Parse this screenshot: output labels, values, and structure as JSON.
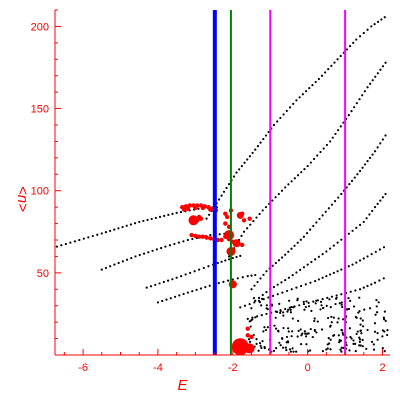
{
  "chart_data": {
    "type": "scatter",
    "xlabel": "E",
    "ylabel": "<n>",
    "xlim": [
      -6.75,
      2.2
    ],
    "ylim": [
      0,
      210
    ],
    "x_ticks": [
      -6,
      -4,
      -2,
      0,
      2
    ],
    "x_tick_labels": [
      "-6",
      "-4",
      "-2",
      "0",
      "2"
    ],
    "y_ticks": [
      50,
      100,
      150,
      200
    ],
    "y_tick_labels": [
      "50",
      "100",
      "150",
      "200"
    ],
    "grid": false,
    "colors": {
      "axes": "#ff0000",
      "black_points": "#000000",
      "red_points": "#ff0000"
    },
    "vertical_lines": [
      {
        "x": -2.48,
        "color": "#0000ff",
        "width": 4
      },
      {
        "x": -2.05,
        "color": "#008000",
        "width": 2
      },
      {
        "x": -1.0,
        "color": "#ff00ff",
        "width": 2
      },
      {
        "x": 1.0,
        "color": "#ff00ff",
        "width": 2
      }
    ],
    "dotted_curves": [
      {
        "points": [
          [
            -6.7,
            66
          ],
          [
            -5.5,
            74
          ],
          [
            -4.5,
            81
          ],
          [
            -3.5,
            86.5
          ],
          [
            -2.8,
            89.5
          ],
          [
            -2.3,
            90
          ]
        ]
      },
      {
        "points": [
          [
            -5.5,
            52
          ],
          [
            -4.6,
            60
          ],
          [
            -3.8,
            66
          ],
          [
            -3.2,
            70
          ],
          [
            -2.6,
            73
          ],
          [
            -2.1,
            74
          ]
        ]
      },
      {
        "points": [
          [
            -4.3,
            41
          ],
          [
            -3.5,
            47
          ],
          [
            -2.9,
            52
          ],
          [
            -2.4,
            56
          ],
          [
            -2.0,
            59
          ],
          [
            -1.7,
            61
          ]
        ]
      },
      {
        "points": [
          [
            -4.0,
            32
          ],
          [
            -3.2,
            38
          ],
          [
            -2.5,
            43
          ],
          [
            -2.0,
            46
          ],
          [
            -1.6,
            48
          ],
          [
            -1.3,
            49
          ]
        ]
      },
      {
        "points": [
          [
            -2.7,
            83
          ],
          [
            -2.3,
            97
          ],
          [
            -1.9,
            111
          ],
          [
            -1.4,
            125
          ],
          [
            -0.9,
            140
          ],
          [
            -0.3,
            155
          ],
          [
            0.3,
            168
          ],
          [
            0.8,
            180
          ],
          [
            1.3,
            192
          ],
          [
            1.7,
            200
          ],
          [
            2.15,
            207
          ]
        ]
      },
      {
        "points": [
          [
            -2.1,
            60
          ],
          [
            -1.7,
            75
          ],
          [
            -1.2,
            88
          ],
          [
            -0.6,
            102
          ],
          [
            0.0,
            115
          ],
          [
            0.6,
            130
          ],
          [
            1.1,
            146
          ],
          [
            1.6,
            163
          ],
          [
            2.15,
            180
          ]
        ]
      },
      {
        "points": [
          [
            -1.5,
            40
          ],
          [
            -1.1,
            51
          ],
          [
            -0.6,
            61
          ],
          [
            -0.1,
            72
          ],
          [
            0.4,
            85
          ],
          [
            0.9,
            98
          ],
          [
            1.4,
            112
          ],
          [
            1.8,
            124
          ],
          [
            2.15,
            136
          ]
        ]
      },
      {
        "points": [
          [
            -1.4,
            33
          ],
          [
            -1.0,
            40
          ],
          [
            -0.5,
            47
          ],
          [
            0.0,
            55
          ],
          [
            0.5,
            63
          ],
          [
            1.0,
            72
          ],
          [
            1.5,
            81
          ],
          [
            1.8,
            90
          ],
          [
            2.15,
            100
          ]
        ]
      },
      {
        "points": [
          [
            -1.8,
            29
          ],
          [
            -1.3,
            33
          ],
          [
            -0.8,
            37
          ],
          [
            -0.3,
            41
          ],
          [
            0.2,
            45
          ],
          [
            0.7,
            50
          ],
          [
            1.2,
            55
          ],
          [
            1.6,
            60
          ],
          [
            2.15,
            67
          ]
        ]
      },
      {
        "points": [
          [
            -1.6,
            22
          ],
          [
            -1.1,
            25
          ],
          [
            -0.6,
            28
          ],
          [
            -0.1,
            31
          ],
          [
            0.4,
            34
          ],
          [
            0.9,
            37
          ],
          [
            1.4,
            40
          ],
          [
            1.8,
            44
          ],
          [
            2.15,
            48
          ]
        ]
      }
    ],
    "red_points": [
      [
        -3.35,
        90
      ],
      [
        -3.25,
        90.5
      ],
      [
        -3.15,
        91
      ],
      [
        -3.05,
        91
      ],
      [
        -2.95,
        91
      ],
      [
        -2.85,
        91
      ],
      [
        -2.75,
        90.5
      ],
      [
        -2.65,
        90
      ],
      [
        -2.55,
        89
      ],
      [
        -2.45,
        88
      ],
      [
        -3.3,
        88.5
      ],
      [
        -3.2,
        89
      ],
      [
        -3.0,
        89.5
      ],
      [
        -2.8,
        89.5
      ],
      [
        -2.6,
        88.5
      ],
      [
        -2.95,
        82
      ],
      [
        -2.9,
        84
      ],
      [
        -2.85,
        83
      ],
      [
        -3.1,
        73
      ],
      [
        -3.0,
        72.5
      ],
      [
        -2.9,
        72
      ],
      [
        -2.8,
        72
      ],
      [
        -2.7,
        71.5
      ],
      [
        -2.6,
        71
      ],
      [
        -2.5,
        70.5
      ],
      [
        -2.4,
        70
      ],
      [
        -2.3,
        70
      ],
      [
        -2.2,
        80
      ],
      [
        -2.15,
        84
      ],
      [
        -2.2,
        86
      ],
      [
        -2.1,
        78
      ],
      [
        -2.2,
        72
      ],
      [
        -2.1,
        70.5
      ],
      [
        -2.0,
        69
      ],
      [
        -1.85,
        68
      ],
      [
        -1.75,
        67
      ],
      [
        -1.7,
        82
      ],
      [
        -1.55,
        83
      ],
      [
        -2.05,
        88
      ],
      [
        -1.75,
        86
      ],
      [
        -2.05,
        63
      ],
      [
        -2.0,
        64
      ],
      [
        -2.0,
        44
      ],
      [
        -1.95,
        43
      ],
      [
        -1.6,
        12
      ],
      [
        -1.5,
        11
      ],
      [
        -1.6,
        16
      ]
    ],
    "red_blobs": [
      [
        -3.05,
        82,
        5
      ],
      [
        -2.1,
        73,
        5
      ],
      [
        -2.05,
        63,
        4.5
      ],
      [
        -1.9,
        68,
        4
      ],
      [
        -2.0,
        43,
        4
      ],
      [
        -1.8,
        85,
        3.5
      ],
      [
        -1.8,
        5,
        8.5
      ],
      [
        -1.55,
        4,
        5
      ]
    ],
    "scatter_cloud": {
      "x_range": [
        -1.6,
        2.15
      ],
      "y_range": [
        2,
        35
      ],
      "count": 230
    }
  }
}
